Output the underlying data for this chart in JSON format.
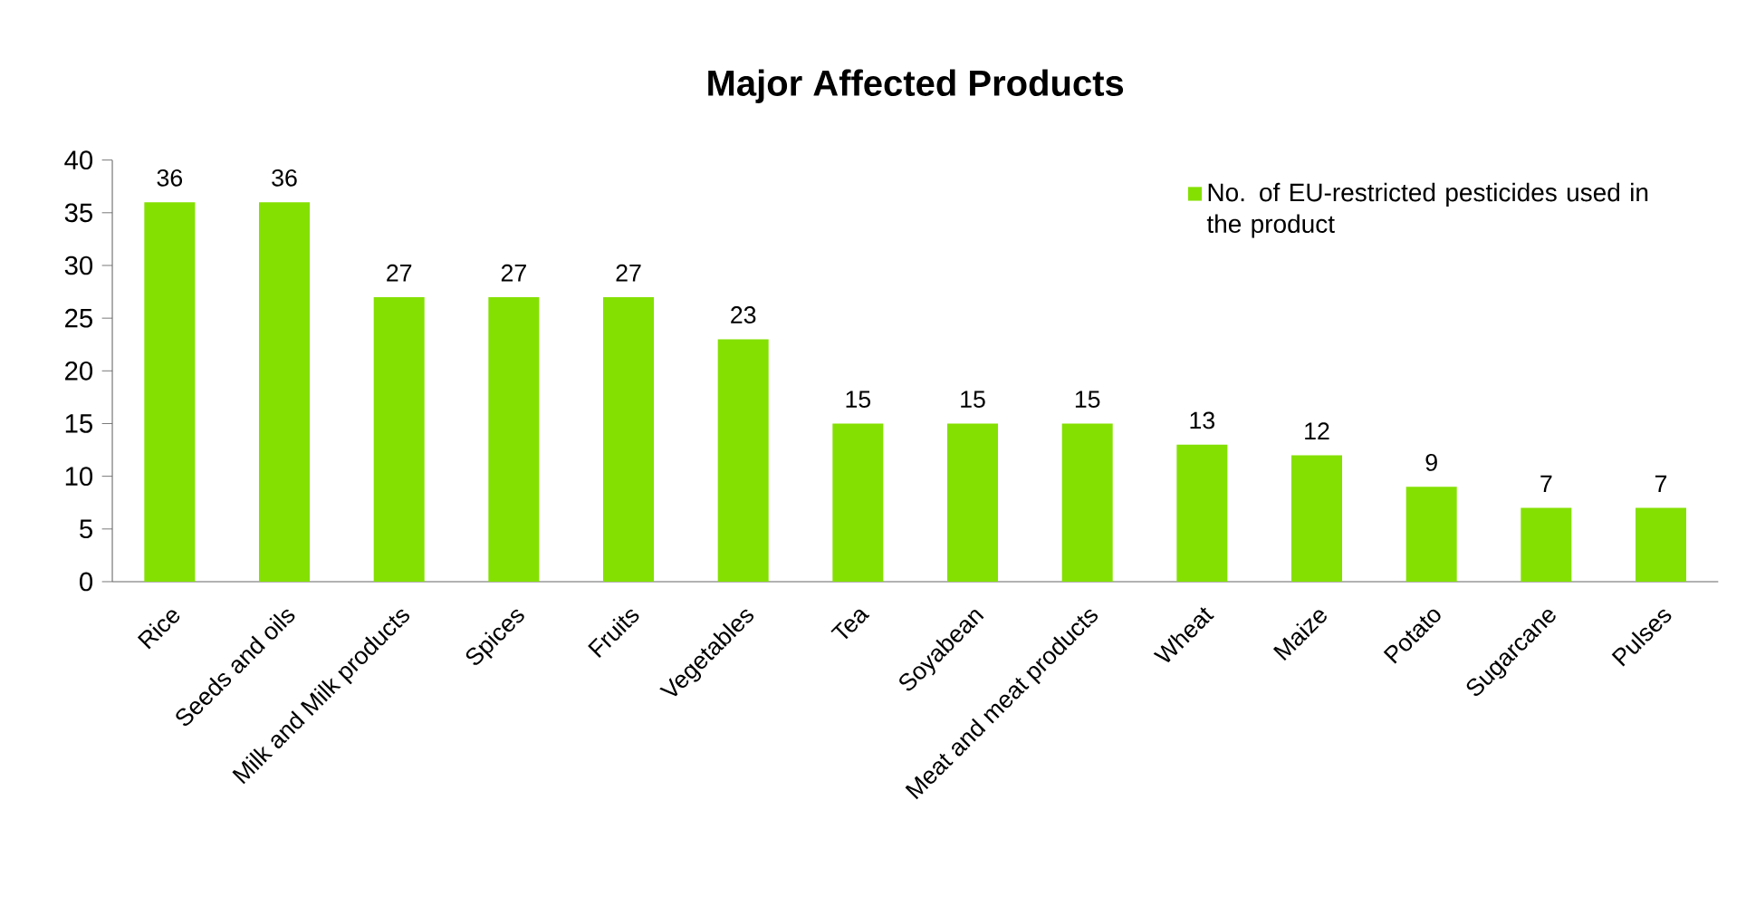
{
  "chart_data": {
    "type": "bar",
    "title": "Major Affected Products",
    "categories": [
      "Rice",
      "Seeds and oils",
      "Milk and Milk products",
      "Spices",
      "Fruits",
      "Vegetables",
      "Tea",
      "Soyabean",
      "Meat and meat products",
      "Wheat",
      "Maize",
      "Potato",
      "Sugarcane",
      "Pulses"
    ],
    "series": [
      {
        "name": "No. of EU-restricted pesticides used in the product",
        "color": "#84e000",
        "values": [
          36,
          36,
          27,
          27,
          27,
          23,
          15,
          15,
          15,
          13,
          12,
          9,
          7,
          7
        ]
      }
    ],
    "ylim": [
      0,
      40
    ],
    "yticks": [
      0,
      5,
      10,
      15,
      20,
      25,
      30,
      35,
      40
    ],
    "grid": false,
    "legend": "top right",
    "data_labels": true
  }
}
